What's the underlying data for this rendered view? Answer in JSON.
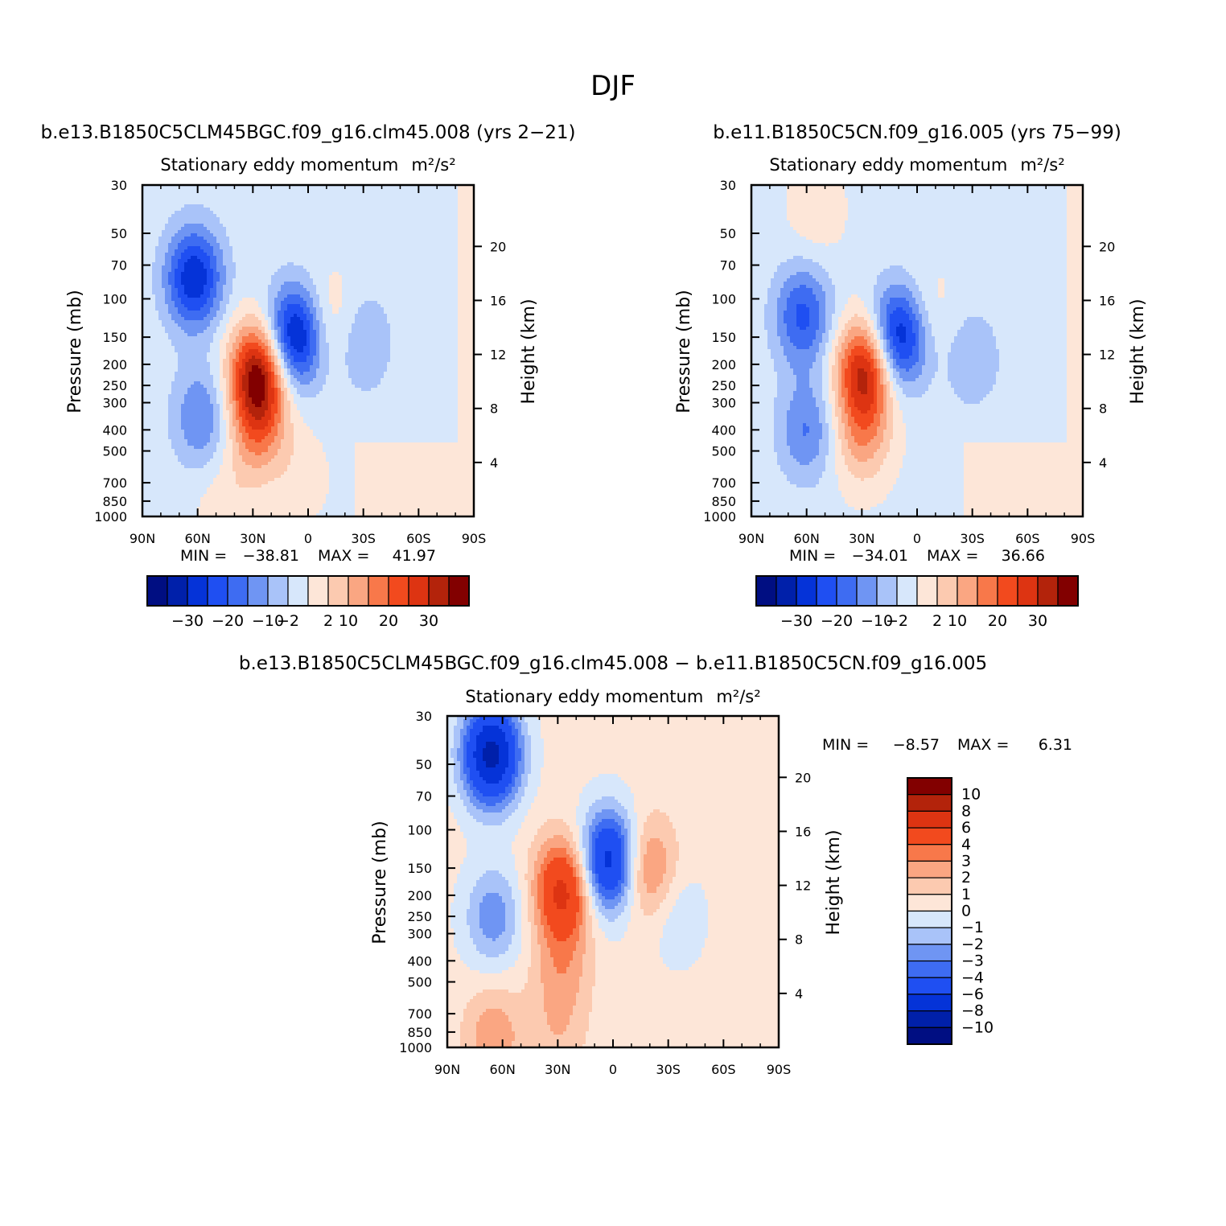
{
  "figure": {
    "title": "DJF"
  },
  "chart_data": [
    {
      "type": "heatmap",
      "case_title": "b.e13.B1850C5CLM45BGC.f09_g16.clm45.008 (yrs 2-21)",
      "variable": "Stationary eddy momentum",
      "units": "m²/s²",
      "xlabel": "",
      "ylabel": "Pressure (mb)",
      "ylabel_right": "Height (km)",
      "x_ticks": [
        "90N",
        "60N",
        "30N",
        "0",
        "30S",
        "60S",
        "90S"
      ],
      "y_ticks": [
        30,
        50,
        70,
        100,
        150,
        200,
        250,
        300,
        400,
        500,
        700,
        850,
        1000
      ],
      "y_right_ticks": [
        20,
        16,
        12,
        8,
        4
      ],
      "xlim": [
        90,
        -90
      ],
      "ylim": [
        1000,
        30
      ],
      "y_scale": "log",
      "stats": {
        "min_label": "MIN =",
        "min": "-38.81",
        "max_label": "MAX =",
        "max": "41.97"
      },
      "colorbar": {
        "orientation": "horizontal",
        "tick_labels": [
          "-30",
          "-20",
          "-10",
          "-2",
          "2",
          "10",
          "20",
          "30"
        ]
      },
      "features": [
        {
          "lat": 62,
          "p": 80,
          "value": -28
        },
        {
          "lat": 58,
          "p": 350,
          "value": -14
        },
        {
          "lat": 27,
          "p": 220,
          "value": 38
        },
        {
          "lat": 28,
          "p": 400,
          "value": 16
        },
        {
          "lat": 7,
          "p": 150,
          "value": -34
        },
        {
          "lat": -10,
          "p": 130,
          "value": 9
        },
        {
          "lat": -30,
          "p": 160,
          "value": -9
        },
        {
          "lat": -35,
          "p": 700,
          "value": 2
        },
        {
          "lat": 5,
          "p": 650,
          "value": 4
        },
        {
          "lat": 45,
          "p": 900,
          "value": 5
        }
      ]
    },
    {
      "type": "heatmap",
      "case_title": "b.e11.B1850C5CN.f09_g16.005 (yrs 75-99)",
      "variable": "Stationary eddy momentum",
      "units": "m²/s²",
      "xlabel": "",
      "ylabel": "Pressure (mb)",
      "ylabel_right": "Height (km)",
      "x_ticks": [
        "90N",
        "60N",
        "30N",
        "0",
        "30S",
        "60S",
        "90S"
      ],
      "y_ticks": [
        30,
        50,
        70,
        100,
        150,
        200,
        250,
        300,
        400,
        500,
        700,
        850,
        1000
      ],
      "y_right_ticks": [
        20,
        16,
        12,
        8,
        4
      ],
      "xlim": [
        90,
        -90
      ],
      "ylim": [
        1000,
        30
      ],
      "y_scale": "log",
      "stats": {
        "min_label": "MIN =",
        "min": "-34.01",
        "max_label": "MAX =",
        "max": "36.66"
      },
      "colorbar": {
        "orientation": "horizontal",
        "tick_labels": [
          "-30",
          "-20",
          "-10",
          "-2",
          "2",
          "10",
          "20",
          "30"
        ]
      },
      "features": [
        {
          "lat": 62,
          "p": 120,
          "value": -20
        },
        {
          "lat": 60,
          "p": 400,
          "value": -14
        },
        {
          "lat": 28,
          "p": 210,
          "value": 34
        },
        {
          "lat": 30,
          "p": 420,
          "value": 14
        },
        {
          "lat": 10,
          "p": 150,
          "value": -32
        },
        {
          "lat": -5,
          "p": 120,
          "value": 6
        },
        {
          "lat": -30,
          "p": 190,
          "value": -8
        },
        {
          "lat": 55,
          "p": 40,
          "value": 5
        },
        {
          "lat": -40,
          "p": 650,
          "value": 2
        }
      ]
    },
    {
      "type": "heatmap",
      "case_title": "b.e13.B1850C5CLM45BGC.f09_g16.clm45.008 - b.e11.B1850C5CN.f09_g16.005",
      "variable": "Stationary eddy momentum",
      "units": "m²/s²",
      "xlabel": "",
      "ylabel": "Pressure (mb)",
      "ylabel_right": "Height (km)",
      "x_ticks": [
        "90N",
        "60N",
        "30N",
        "0",
        "30S",
        "60S",
        "90S"
      ],
      "y_ticks": [
        30,
        50,
        70,
        100,
        150,
        200,
        250,
        300,
        400,
        500,
        700,
        850,
        1000
      ],
      "y_right_ticks": [
        20,
        16,
        12,
        8,
        4
      ],
      "xlim": [
        90,
        -90
      ],
      "ylim": [
        1000,
        30
      ],
      "y_scale": "log",
      "stats": {
        "min_label": "MIN =",
        "min": "-8.57",
        "max_label": "MAX =",
        "max": "6.31"
      },
      "colorbar": {
        "orientation": "vertical",
        "tick_labels": [
          "10",
          "8",
          "6",
          "4",
          "3",
          "2",
          "1",
          "0",
          "-1",
          "-2",
          "-3",
          "-4",
          "-6",
          "-8",
          "-10"
        ]
      },
      "features": [
        {
          "lat": 66,
          "p": 45,
          "value": -9
        },
        {
          "lat": 65,
          "p": 250,
          "value": -3
        },
        {
          "lat": 27,
          "p": 190,
          "value": 6.3
        },
        {
          "lat": 28,
          "p": 450,
          "value": 2
        },
        {
          "lat": 2,
          "p": 140,
          "value": -7.5
        },
        {
          "lat": -18,
          "p": 150,
          "value": 3.5
        },
        {
          "lat": 30,
          "p": 900,
          "value": 1.2
        },
        {
          "lat": 65,
          "p": 900,
          "value": 2.5
        },
        {
          "lat": -35,
          "p": 250,
          "value": -1.2
        }
      ]
    }
  ],
  "colors": {
    "levels": [
      "#000e82",
      "#0020aa",
      "#0533d8",
      "#1f4ff2",
      "#3e6cf2",
      "#6f95f3",
      "#a9c3f9",
      "#d7e7fb",
      "#fde6d8",
      "#fccab0",
      "#faa682",
      "#f8784a",
      "#f24a1e",
      "#dd3412",
      "#b3230b",
      "#820000"
    ]
  }
}
